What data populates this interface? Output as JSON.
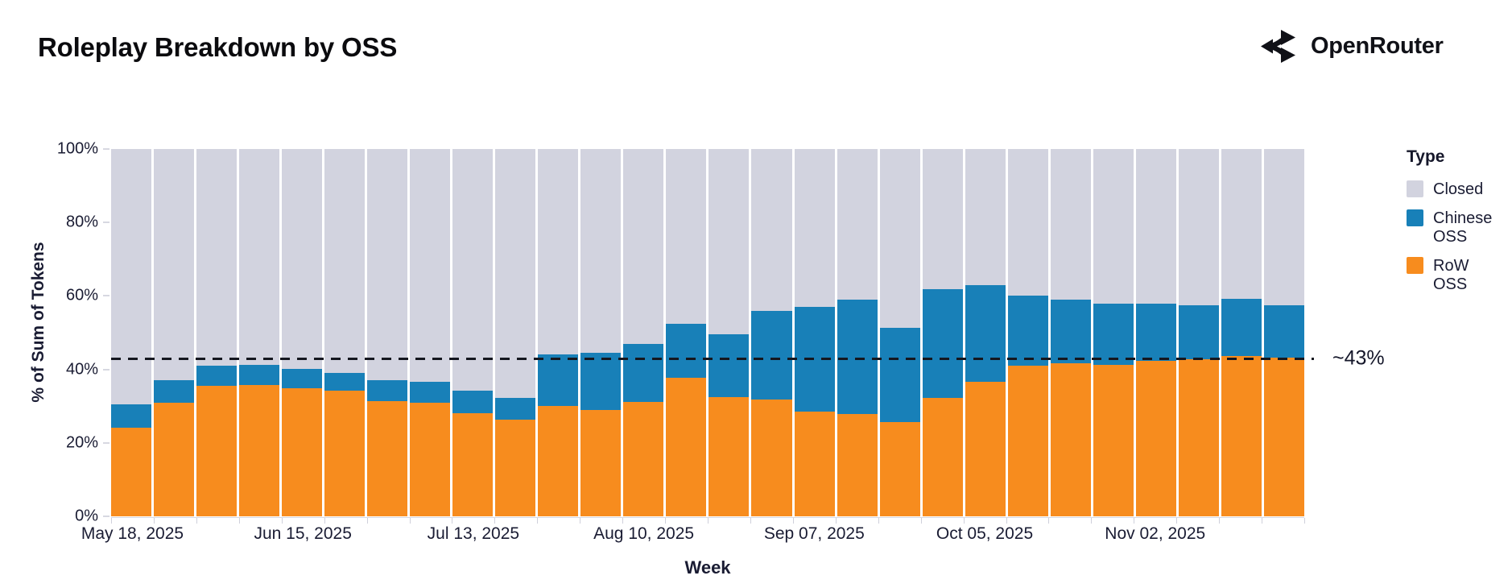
{
  "header": {
    "title": "Roleplay Breakdown by OSS",
    "brand": {
      "name": "OpenRouter"
    }
  },
  "chart_data": {
    "type": "bar",
    "stacked": true,
    "stack_unit": "percent",
    "title": "Roleplay Breakdown by OSS",
    "xlabel": "Week",
    "ylabel": "% of Sum of Tokens",
    "ylim": [
      0,
      100
    ],
    "grid": false,
    "bar_count": 28,
    "y_ticks": [
      {
        "value": 0,
        "label": "0%"
      },
      {
        "value": 20,
        "label": "20%"
      },
      {
        "value": 40,
        "label": "40%"
      },
      {
        "value": 60,
        "label": "60%"
      },
      {
        "value": 80,
        "label": "80%"
      },
      {
        "value": 100,
        "label": "100%"
      }
    ],
    "x_ticks": [
      {
        "bar_index": 0,
        "label": "May 18, 2025"
      },
      {
        "bar_index": 4,
        "label": "Jun 15, 2025"
      },
      {
        "bar_index": 8,
        "label": "Jul 13, 2025"
      },
      {
        "bar_index": 12,
        "label": "Aug 10, 2025"
      },
      {
        "bar_index": 16,
        "label": "Sep 07, 2025"
      },
      {
        "bar_index": 20,
        "label": "Oct 05, 2025"
      },
      {
        "bar_index": 24,
        "label": "Nov 02, 2025"
      }
    ],
    "legend": {
      "title": "Type",
      "position": "right",
      "entries": [
        {
          "label": "Closed",
          "color": "#d2d3df"
        },
        {
          "label": "Chinese OSS",
          "color": "#1880b8"
        },
        {
          "label": "RoW OSS",
          "color": "#f78c1e"
        }
      ]
    },
    "reference_line": {
      "value": 43,
      "label": "~43%",
      "style": "dashed",
      "color": "#15171f"
    },
    "series": [
      {
        "name": "Closed",
        "color": "#d2d3df",
        "values": [
          69.6,
          62.9,
          58.9,
          58.7,
          59.8,
          60.9,
          62.9,
          63.3,
          65.8,
          67.8,
          56.0,
          55.5,
          53.0,
          47.5,
          50.5,
          44.0,
          43.0,
          41.0,
          48.7,
          38.2,
          37.0,
          40.0,
          41.0,
          42.0,
          42.0,
          42.5,
          40.8,
          42.5
        ]
      },
      {
        "name": "Chinese OSS",
        "color": "#1880b8",
        "values": [
          6.2,
          6.2,
          5.5,
          5.5,
          5.3,
          4.9,
          5.8,
          5.8,
          6.2,
          5.8,
          14.0,
          15.5,
          15.8,
          14.7,
          17.0,
          24.2,
          28.6,
          31.2,
          25.7,
          29.5,
          26.3,
          19.1,
          17.4,
          16.8,
          15.6,
          14.8,
          15.6,
          14.4
        ]
      },
      {
        "name": "RoW OSS",
        "color": "#f78c1e",
        "values": [
          24.2,
          30.9,
          35.6,
          35.8,
          34.9,
          34.2,
          31.3,
          30.9,
          28.0,
          26.4,
          30.0,
          29.0,
          31.2,
          37.8,
          32.5,
          31.8,
          28.4,
          27.8,
          25.6,
          32.3,
          36.7,
          40.9,
          41.6,
          41.2,
          42.4,
          42.7,
          43.6,
          43.1
        ]
      }
    ]
  }
}
